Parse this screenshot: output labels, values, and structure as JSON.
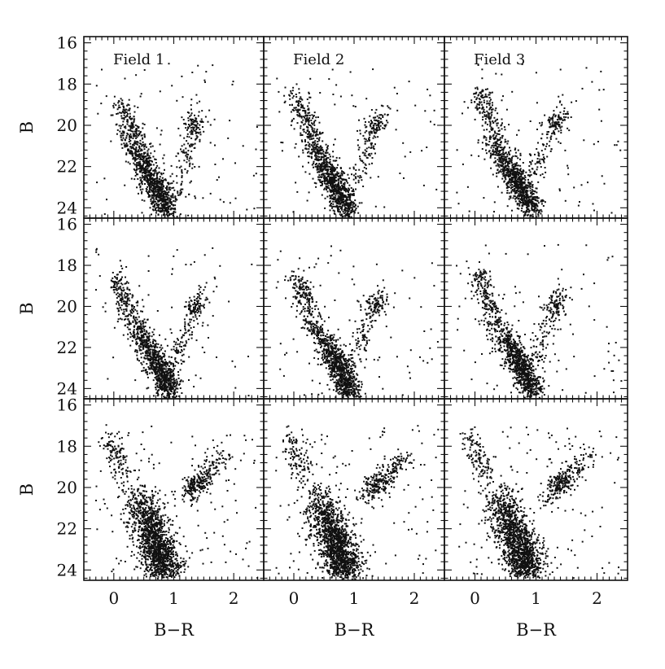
{
  "chart_data": {
    "type": "scatter",
    "layout": "3x3 grid of panels",
    "xlabel": "B−R",
    "ylabel": "B",
    "xlim": [
      -0.5,
      2.5
    ],
    "ylim": [
      24.5,
      15.7
    ],
    "y_inverted": true,
    "x_ticks": [
      "0",
      "1",
      "2"
    ],
    "y_ticks": [
      "16",
      "18",
      "20",
      "22",
      "24"
    ],
    "columns": [
      "Field 1",
      "Field 2",
      "Field 3"
    ],
    "rows": 3,
    "grid": false,
    "legend": "none",
    "marker": "small black dots",
    "panels": [
      {
        "row": 0,
        "col": 0,
        "main_sequence": [
          {
            "x": 0.15,
            "y": 20.2
          },
          {
            "x": 0.35,
            "y": 21.1
          },
          {
            "x": 0.55,
            "y": 22.2
          },
          {
            "x": 0.72,
            "y": 23.1
          },
          {
            "x": 0.9,
            "y": 24.2
          }
        ],
        "giant_branch": [
          {
            "x": 0.1,
            "y": 18.8
          },
          {
            "x": 0.2,
            "y": 19.5
          },
          {
            "x": 0.35,
            "y": 20.4
          },
          {
            "x": 0.6,
            "y": 21.6
          }
        ],
        "red_branch": [
          {
            "x": 1.05,
            "y": 23.5
          },
          {
            "x": 1.15,
            "y": 22.0
          },
          {
            "x": 1.25,
            "y": 20.8
          },
          {
            "x": 1.45,
            "y": 19.2
          }
        ],
        "red_clump": {
          "x": 1.35,
          "y": 20.0
        }
      },
      {
        "row": 0,
        "col": 1,
        "main_sequence": [
          {
            "x": 0.15,
            "y": 20.2
          },
          {
            "x": 0.35,
            "y": 21.1
          },
          {
            "x": 0.55,
            "y": 22.2
          },
          {
            "x": 0.72,
            "y": 23.1
          },
          {
            "x": 0.9,
            "y": 24.2
          }
        ],
        "giant_branch": [
          {
            "x": 0.05,
            "y": 18.8
          },
          {
            "x": 0.2,
            "y": 19.6
          },
          {
            "x": 0.35,
            "y": 20.5
          }
        ],
        "red_branch": [
          {
            "x": 1.0,
            "y": 23.0
          },
          {
            "x": 1.15,
            "y": 21.6
          },
          {
            "x": 1.3,
            "y": 20.5
          },
          {
            "x": 1.5,
            "y": 19.2
          }
        ],
        "red_clump": {
          "x": 1.35,
          "y": 20.0
        }
      },
      {
        "row": 0,
        "col": 2,
        "main_sequence": [
          {
            "x": 0.2,
            "y": 20.4
          },
          {
            "x": 0.4,
            "y": 21.3
          },
          {
            "x": 0.6,
            "y": 22.3
          },
          {
            "x": 0.75,
            "y": 23.1
          },
          {
            "x": 0.95,
            "y": 24.1
          }
        ],
        "giant_branch": [
          {
            "x": 0.1,
            "y": 18.4
          },
          {
            "x": 0.2,
            "y": 19.3
          },
          {
            "x": 0.4,
            "y": 20.3
          }
        ],
        "red_branch": [
          {
            "x": 0.95,
            "y": 22.6
          },
          {
            "x": 1.1,
            "y": 21.4
          },
          {
            "x": 1.25,
            "y": 20.3
          },
          {
            "x": 1.5,
            "y": 19.2
          }
        ],
        "red_clump": {
          "x": 1.3,
          "y": 19.9
        }
      },
      {
        "row": 1,
        "col": 0,
        "main_sequence": [
          {
            "x": 0.2,
            "y": 20.3
          },
          {
            "x": 0.45,
            "y": 21.3
          },
          {
            "x": 0.65,
            "y": 22.4
          },
          {
            "x": 0.8,
            "y": 23.2
          },
          {
            "x": 0.95,
            "y": 24.2
          }
        ],
        "giant_branch": [
          {
            "x": 0.05,
            "y": 18.6
          },
          {
            "x": 0.15,
            "y": 19.5
          },
          {
            "x": 0.3,
            "y": 20.3
          }
        ],
        "red_branch": [
          {
            "x": 1.0,
            "y": 23.0
          },
          {
            "x": 1.1,
            "y": 22.0
          },
          {
            "x": 1.25,
            "y": 20.8
          },
          {
            "x": 1.45,
            "y": 19.3
          }
        ],
        "red_clump": {
          "x": 1.35,
          "y": 20.0
        }
      },
      {
        "row": 1,
        "col": 1,
        "main_sequence": [
          {
            "x": 0.2,
            "y": 20.3
          },
          {
            "x": 0.45,
            "y": 21.3
          },
          {
            "x": 0.65,
            "y": 22.4
          },
          {
            "x": 0.8,
            "y": 23.2
          },
          {
            "x": 0.95,
            "y": 24.2
          }
        ],
        "giant_branch": [
          {
            "x": 0.05,
            "y": 18.6
          },
          {
            "x": 0.15,
            "y": 19.5
          },
          {
            "x": 0.3,
            "y": 20.3
          }
        ],
        "red_branch": [
          {
            "x": 1.0,
            "y": 22.8
          },
          {
            "x": 1.1,
            "y": 21.6
          },
          {
            "x": 1.3,
            "y": 20.3
          },
          {
            "x": 1.5,
            "y": 19.2
          }
        ],
        "red_clump": {
          "x": 1.35,
          "y": 19.9
        }
      },
      {
        "row": 1,
        "col": 2,
        "main_sequence": [
          {
            "x": 0.2,
            "y": 20.3
          },
          {
            "x": 0.45,
            "y": 21.3
          },
          {
            "x": 0.65,
            "y": 22.4
          },
          {
            "x": 0.8,
            "y": 23.2
          },
          {
            "x": 0.95,
            "y": 24.2
          }
        ],
        "giant_branch": [
          {
            "x": 0.05,
            "y": 18.4
          },
          {
            "x": 0.15,
            "y": 19.4
          },
          {
            "x": 0.3,
            "y": 20.3
          }
        ],
        "red_branch": [
          {
            "x": 1.0,
            "y": 22.6
          },
          {
            "x": 1.1,
            "y": 21.5
          },
          {
            "x": 1.3,
            "y": 20.3
          },
          {
            "x": 1.5,
            "y": 19.2
          }
        ],
        "red_clump": {
          "x": 1.3,
          "y": 19.9
        }
      },
      {
        "row": 2,
        "col": 0,
        "main_sequence": [
          {
            "x": 0.4,
            "y": 20.0
          },
          {
            "x": 0.5,
            "y": 21.0
          },
          {
            "x": 0.6,
            "y": 22.0
          },
          {
            "x": 0.75,
            "y": 23.0
          },
          {
            "x": 0.85,
            "y": 24.2
          }
        ],
        "giant_branch": [
          {
            "x": -0.1,
            "y": 17.5
          },
          {
            "x": 0.05,
            "y": 18.5
          },
          {
            "x": 0.2,
            "y": 19.5
          }
        ],
        "red_branch": [
          {
            "x": 1.2,
            "y": 20.6
          },
          {
            "x": 1.35,
            "y": 19.9
          },
          {
            "x": 1.6,
            "y": 19.2
          },
          {
            "x": 1.9,
            "y": 18.5
          }
        ],
        "red_clump": {
          "x": 1.4,
          "y": 19.8
        }
      },
      {
        "row": 2,
        "col": 1,
        "main_sequence": [
          {
            "x": 0.4,
            "y": 20.0
          },
          {
            "x": 0.5,
            "y": 21.0
          },
          {
            "x": 0.6,
            "y": 22.0
          },
          {
            "x": 0.75,
            "y": 23.0
          },
          {
            "x": 0.85,
            "y": 24.2
          }
        ],
        "giant_branch": [
          {
            "x": -0.1,
            "y": 17.5
          },
          {
            "x": 0.05,
            "y": 18.5
          },
          {
            "x": 0.2,
            "y": 19.5
          }
        ],
        "red_branch": [
          {
            "x": 1.2,
            "y": 20.6
          },
          {
            "x": 1.35,
            "y": 19.9
          },
          {
            "x": 1.6,
            "y": 19.2
          },
          {
            "x": 1.9,
            "y": 18.5
          }
        ],
        "red_clump": {
          "x": 1.4,
          "y": 19.8
        }
      },
      {
        "row": 2,
        "col": 2,
        "main_sequence": [
          {
            "x": 0.4,
            "y": 20.0
          },
          {
            "x": 0.5,
            "y": 21.0
          },
          {
            "x": 0.6,
            "y": 22.0
          },
          {
            "x": 0.75,
            "y": 23.0
          },
          {
            "x": 0.85,
            "y": 24.2
          }
        ],
        "giant_branch": [
          {
            "x": -0.1,
            "y": 17.5
          },
          {
            "x": 0.05,
            "y": 18.5
          },
          {
            "x": 0.2,
            "y": 19.5
          }
        ],
        "red_branch": [
          {
            "x": 1.2,
            "y": 20.6
          },
          {
            "x": 1.35,
            "y": 19.9
          },
          {
            "x": 1.6,
            "y": 19.2
          },
          {
            "x": 1.9,
            "y": 18.5
          }
        ],
        "red_clump": {
          "x": 1.4,
          "y": 19.8
        }
      }
    ]
  }
}
